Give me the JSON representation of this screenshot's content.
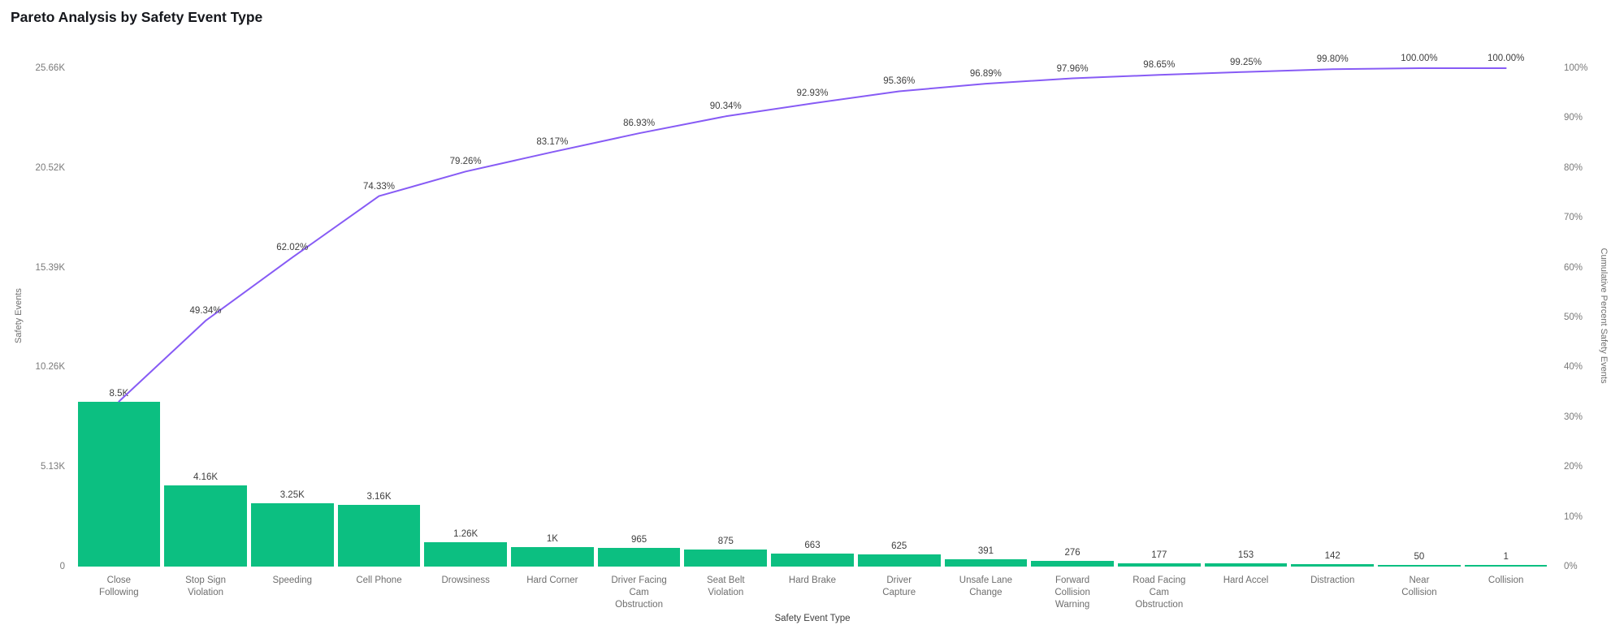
{
  "title": "Pareto Analysis by Safety Event Type",
  "colors": {
    "bar": "#0cbf81",
    "line": "#875bf5",
    "background": "#ffffff",
    "tick_text": "#7a7a7a",
    "label_text": "#3e3e3e"
  },
  "chart_data": {
    "type": "pareto (bar + line)",
    "title": "Pareto Analysis by Safety Event Type",
    "xlabel": "Safety Event Type",
    "ylabel_left": "Safety Events",
    "ylabel_right": "Cumulative Percent Safety Events",
    "ylim_left": [
      0,
      25656
    ],
    "ylim_right": [
      0,
      100
    ],
    "grid": false,
    "legend": false,
    "categories": [
      "Close Following",
      "Stop Sign Violation",
      "Speeding",
      "Cell Phone",
      "Drowsiness",
      "Hard Corner",
      "Driver Facing Cam Obstruction",
      "Seat Belt Violation",
      "Hard Brake",
      "Driver Capture",
      "Unsafe Lane Change",
      "Forward Collision Warning",
      "Road Facing Cam Obstruction",
      "Hard Accel",
      "Distraction",
      "Near Collision",
      "Collision"
    ],
    "category_label_lines": [
      [
        "Close",
        "Following"
      ],
      [
        "Stop Sign",
        "Violation"
      ],
      [
        "Speeding"
      ],
      [
        "Cell Phone"
      ],
      [
        "Drowsiness"
      ],
      [
        "Hard Corner"
      ],
      [
        "Driver Facing",
        "Cam",
        "Obstruction"
      ],
      [
        "Seat Belt",
        "Violation"
      ],
      [
        "Hard Brake"
      ],
      [
        "Driver",
        "Capture"
      ],
      [
        "Unsafe Lane",
        "Change"
      ],
      [
        "Forward",
        "Collision",
        "Warning"
      ],
      [
        "Road Facing",
        "Cam",
        "Obstruction"
      ],
      [
        "Hard Accel"
      ],
      [
        "Distraction"
      ],
      [
        "Near",
        "Collision"
      ],
      [
        "Collision"
      ]
    ],
    "series": [
      {
        "name": "Safety Events",
        "type": "bar",
        "color": "#0cbf81",
        "values": [
          8500,
          4160,
          3250,
          3160,
          1260,
          1000,
          965,
          875,
          663,
          625,
          391,
          276,
          177,
          153,
          142,
          50,
          1
        ],
        "labels": [
          "8.5K",
          "4.16K",
          "3.25K",
          "3.16K",
          "1.26K",
          "1K",
          "965",
          "875",
          "663",
          "625",
          "391",
          "276",
          "177",
          "153",
          "142",
          "50",
          "1"
        ]
      },
      {
        "name": "Cumulative Percent Safety Events",
        "type": "line",
        "color": "#875bf5",
        "values": [
          33.13,
          49.34,
          62.02,
          74.33,
          79.26,
          83.17,
          86.93,
          90.34,
          92.93,
          95.36,
          96.89,
          97.96,
          98.65,
          99.25,
          99.8,
          100.0,
          100.0
        ],
        "labels": [
          null,
          "49.34%",
          "62.02%",
          "74.33%",
          "79.26%",
          "83.17%",
          "86.93%",
          "90.34%",
          "92.93%",
          "95.36%",
          "96.89%",
          "97.96%",
          "98.65%",
          "99.25%",
          "99.80%",
          "100.00%",
          "100.00%"
        ]
      }
    ],
    "y_left_ticks": [
      "25.66K",
      "20.52K",
      "15.39K",
      "10.26K",
      "5.13K",
      "0"
    ],
    "y_right_ticks": [
      "100%",
      "90%",
      "80%",
      "70%",
      "60%",
      "50%",
      "40%",
      "30%",
      "20%",
      "10%",
      "0%"
    ]
  }
}
